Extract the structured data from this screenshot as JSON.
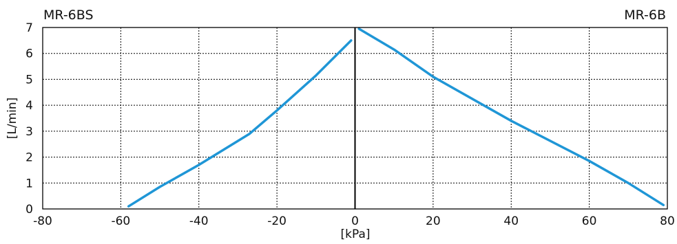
{
  "chart_data": {
    "type": "line",
    "title": "",
    "xlabel": "[kPa]",
    "ylabel": "[L/min]",
    "xlim": [
      -80,
      80
    ],
    "ylim": [
      0,
      7
    ],
    "x_ticks": [
      -80,
      -60,
      -40,
      -20,
      0,
      20,
      40,
      60,
      80
    ],
    "y_ticks": [
      0,
      1,
      2,
      3,
      4,
      5,
      6,
      7
    ],
    "grid": true,
    "legend": "none",
    "annotations": [
      {
        "id": "left",
        "text": "MR-6BS"
      },
      {
        "id": "right",
        "text": "MR-6B"
      }
    ],
    "series_color": "#1f96d6",
    "series": [
      {
        "name": "",
        "x": [
          -58,
          -50,
          -40,
          -27,
          -20,
          -10,
          -1
        ],
        "y": [
          0.1,
          0.85,
          1.7,
          2.9,
          3.8,
          5.15,
          6.5
        ]
      },
      {
        "name": "",
        "x": [
          1,
          10,
          20,
          40,
          60,
          70,
          79
        ],
        "y": [
          6.95,
          6.15,
          5.1,
          3.4,
          1.85,
          1.0,
          0.15
        ]
      }
    ]
  }
}
